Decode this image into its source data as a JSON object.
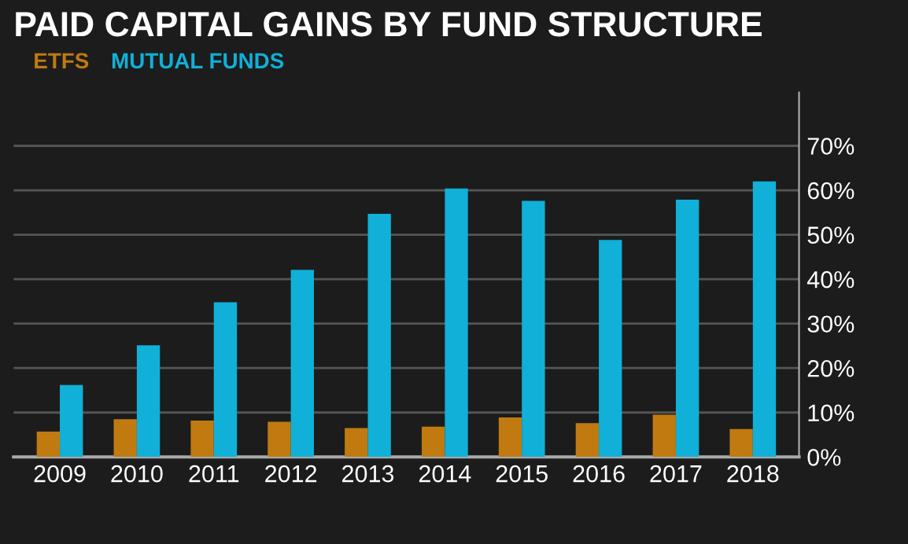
{
  "chart_data": {
    "type": "bar",
    "title": "PAID CAPITAL GAINS BY FUND STRUCTURE",
    "categories": [
      "2009",
      "2010",
      "2011",
      "2012",
      "2013",
      "2014",
      "2015",
      "2016",
      "2017",
      "2018"
    ],
    "series": [
      {
        "name": "ETFS",
        "color": "#c07a10",
        "values": [
          5.7,
          8.5,
          8.2,
          7.9,
          6.5,
          6.8,
          8.9,
          7.6,
          9.5,
          6.3
        ]
      },
      {
        "name": "MUTUAL FUNDS",
        "color": "#10b0d8",
        "values": [
          16.2,
          25.1,
          34.8,
          42.1,
          54.7,
          60.4,
          57.6,
          48.8,
          57.9,
          62.0
        ]
      }
    ],
    "ylim": [
      0,
      82
    ],
    "yticks": [
      {
        "value": 0,
        "label": "0%"
      },
      {
        "value": 10,
        "label": "10%"
      },
      {
        "value": 20,
        "label": "20%"
      },
      {
        "value": 30,
        "label": "30%"
      },
      {
        "value": 40,
        "label": "40%"
      },
      {
        "value": 50,
        "label": "50%"
      },
      {
        "value": 60,
        "label": "60%"
      },
      {
        "value": 70,
        "label": "70%"
      }
    ],
    "grid": "y",
    "legend": "top left"
  }
}
